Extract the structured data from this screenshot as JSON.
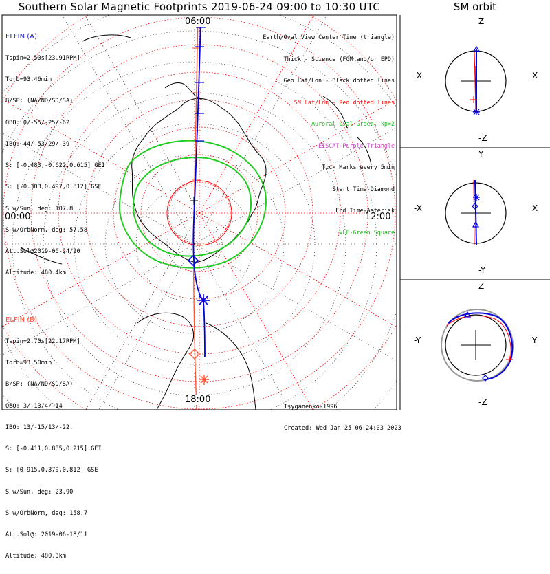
{
  "title": "Southern Solar Magnetic Footprints 2019-06-24 09:00 to 10:30 UTC",
  "orbit_title": "SM orbit",
  "map": {
    "labels": {
      "top": "06:00",
      "left": "00:00",
      "right": "12:00",
      "bottom": "18:00"
    }
  },
  "elfin_a": {
    "head": "ELFIN (A)",
    "color": "#2222cc",
    "lines": [
      "Tspin=2.50s[23.91RPM]",
      "Torb=93.46min",
      "B/SP: (NA/ND/SD/SA)",
      "OBO: 0/-55/-25/-62",
      "IBO: 44/-53/29/-39",
      "S: [-0.483,-0.622,0.615] GEI",
      "S: [-0.303,0.497,0.812] GSE",
      "S w/Sun, deg: 107.8",
      "S w/OrbNorm, deg: 57.58",
      "Att.Sol@2019-06-24/20",
      "Altitude: 480.4km"
    ]
  },
  "elfin_b": {
    "head": "ELFIN (B)",
    "color": "#ff5533",
    "lines": [
      "Tspin=2.70s[22.17RPM]",
      "Torb=93.50min",
      "B/SP: (NA/ND/SD/SA)",
      "OBO: 3/-13/4/-14",
      "IBO: 13/-15/13/-22.",
      "S: [-0.411,0.885,0.215] GEI",
      "S: [0.915,0.370,0.812] GSE",
      "S w/Sun, deg: 23.90",
      "S w/OrbNorm, deg: 158.7",
      "Att.Sol@: 2019-06-18/11",
      "Altitude: 480.3km"
    ]
  },
  "legend": [
    {
      "text": "Earth/Oval View Center Time (triangle)",
      "color": "#000000"
    },
    {
      "text": "Thick - Science (FGM and/or EPD)",
      "color": "#000000"
    },
    {
      "text": "Geo Lat/Lon - Black dotted lines",
      "color": "#000000"
    },
    {
      "text": "SM Lat/Lon - Red dotted lines",
      "color": "#ff0000"
    },
    {
      "text": "Auroral Oval-Green, kp=2",
      "color": "#22bb22"
    },
    {
      "text": "EISCAT-Purple Triangle",
      "color": "#cc44cc"
    },
    {
      "text": "Tick Marks every 5min",
      "color": "#000000"
    },
    {
      "text": "Start Time-Diamond",
      "color": "#000000"
    },
    {
      "text": "End Time-Asterisk",
      "color": "#000000"
    },
    {
      "text": "VLF-Green Square",
      "color": "#22bb22"
    }
  ],
  "credit": {
    "author": "Tsyganenko-1996",
    "created": "Created: Wed Jan 25 06:24:03 2023"
  },
  "orbit_panels": [
    {
      "top": "Z",
      "bottom": "-Z",
      "left": "-X",
      "right": "X"
    },
    {
      "top": "Y",
      "bottom": "-Y",
      "left": "-X",
      "right": "X"
    },
    {
      "top": "Z",
      "bottom": "-Z",
      "left": "-Y",
      "right": "Y"
    }
  ],
  "colors": {
    "red": "#ff0000",
    "green": "#22cc22",
    "blue": "#0000dd",
    "orange": "#ff5533"
  }
}
